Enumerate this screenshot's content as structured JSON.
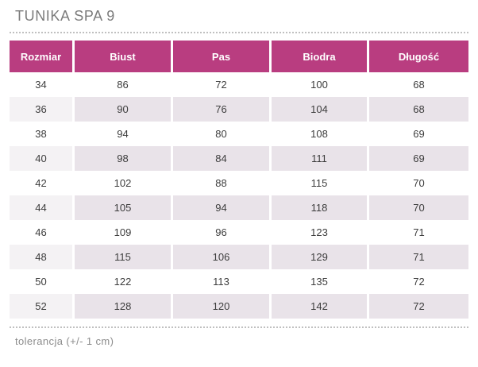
{
  "title": "TUNIKA SPA 9",
  "footer": {
    "note": "tolerancja (+/- 1 cm)"
  },
  "colors": {
    "header_bg": "#b93d80",
    "header_text": "#ffffff",
    "stripe_bg": "#e9e3e9",
    "stripe_first_col_bg": "#f4f2f4",
    "cell_text": "#3d3d3d",
    "title_text": "#7b7b7b",
    "note_text": "#8c8c8c",
    "dotted_line": "#c0c0c0"
  },
  "table": {
    "columns": [
      "Rozmiar",
      "Biust",
      "Pas",
      "Biodra",
      "Długość"
    ],
    "rows": [
      [
        "34",
        "86",
        "72",
        "100",
        "68"
      ],
      [
        "36",
        "90",
        "76",
        "104",
        "68"
      ],
      [
        "38",
        "94",
        "80",
        "108",
        "69"
      ],
      [
        "40",
        "98",
        "84",
        "111",
        "69"
      ],
      [
        "42",
        "102",
        "88",
        "115",
        "70"
      ],
      [
        "44",
        "105",
        "94",
        "118",
        "70"
      ],
      [
        "46",
        "109",
        "96",
        "123",
        "71"
      ],
      [
        "48",
        "115",
        "106",
        "129",
        "71"
      ],
      [
        "50",
        "122",
        "113",
        "135",
        "72"
      ],
      [
        "52",
        "128",
        "120",
        "142",
        "72"
      ]
    ]
  }
}
